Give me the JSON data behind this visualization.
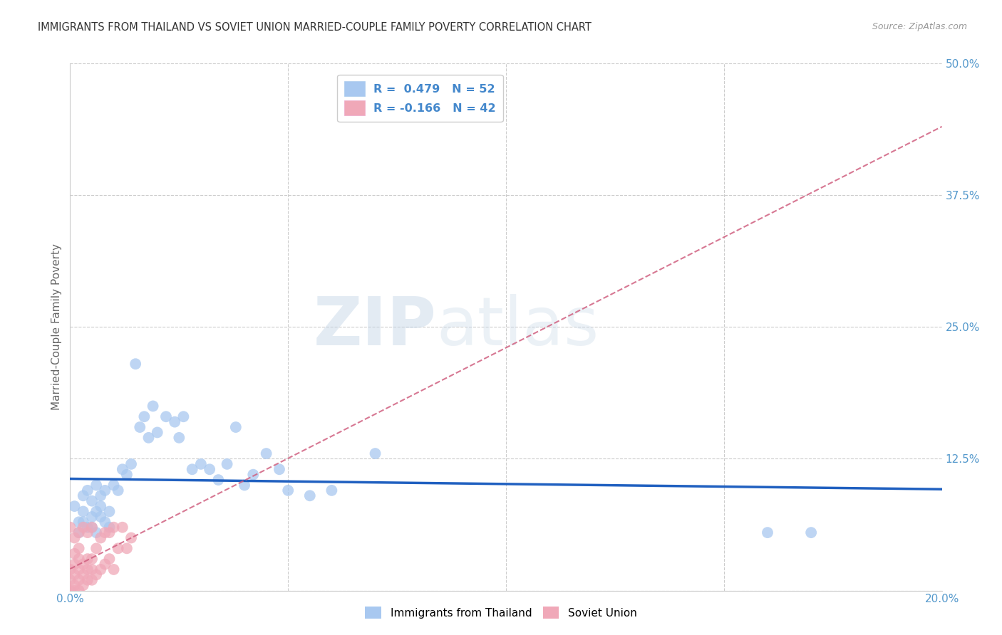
{
  "title": "IMMIGRANTS FROM THAILAND VS SOVIET UNION MARRIED-COUPLE FAMILY POVERTY CORRELATION CHART",
  "source": "Source: ZipAtlas.com",
  "ylabel": "Married-Couple Family Poverty",
  "xlim": [
    0.0,
    0.2
  ],
  "ylim": [
    0.0,
    0.5
  ],
  "xticks": [
    0.0,
    0.05,
    0.1,
    0.15,
    0.2
  ],
  "yticks": [
    0.0,
    0.125,
    0.25,
    0.375,
    0.5
  ],
  "xticklabels": [
    "0.0%",
    "",
    "",
    "",
    "20.0%"
  ],
  "yticklabels": [
    "",
    "12.5%",
    "25.0%",
    "37.5%",
    "50.0%"
  ],
  "thailand_R": 0.479,
  "thailand_N": 52,
  "soviet_R": -0.166,
  "soviet_N": 42,
  "thailand_color": "#a8c8f0",
  "soviet_color": "#f0a8b8",
  "thailand_line_color": "#2060c0",
  "soviet_line_color": "#d06080",
  "watermark_zip": "ZIP",
  "watermark_atlas": "atlas",
  "thailand_x": [
    0.001,
    0.002,
    0.002,
    0.003,
    0.003,
    0.003,
    0.004,
    0.004,
    0.005,
    0.005,
    0.005,
    0.006,
    0.006,
    0.006,
    0.007,
    0.007,
    0.007,
    0.008,
    0.008,
    0.009,
    0.009,
    0.01,
    0.011,
    0.012,
    0.013,
    0.014,
    0.015,
    0.016,
    0.017,
    0.018,
    0.019,
    0.02,
    0.022,
    0.024,
    0.025,
    0.026,
    0.028,
    0.03,
    0.032,
    0.034,
    0.036,
    0.038,
    0.04,
    0.042,
    0.045,
    0.048,
    0.05,
    0.055,
    0.06,
    0.07,
    0.16,
    0.17
  ],
  "thailand_y": [
    0.08,
    0.065,
    0.055,
    0.075,
    0.065,
    0.09,
    0.06,
    0.095,
    0.07,
    0.085,
    0.06,
    0.075,
    0.1,
    0.055,
    0.08,
    0.09,
    0.07,
    0.065,
    0.095,
    0.075,
    0.06,
    0.1,
    0.095,
    0.115,
    0.11,
    0.12,
    0.215,
    0.155,
    0.165,
    0.145,
    0.175,
    0.15,
    0.165,
    0.16,
    0.145,
    0.165,
    0.115,
    0.12,
    0.115,
    0.105,
    0.12,
    0.155,
    0.1,
    0.11,
    0.13,
    0.115,
    0.095,
    0.09,
    0.095,
    0.13,
    0.055,
    0.055
  ],
  "soviet_x": [
    0.0,
    0.0,
    0.0,
    0.0,
    0.001,
    0.001,
    0.001,
    0.001,
    0.001,
    0.001,
    0.002,
    0.002,
    0.002,
    0.002,
    0.002,
    0.002,
    0.003,
    0.003,
    0.003,
    0.003,
    0.004,
    0.004,
    0.004,
    0.004,
    0.005,
    0.005,
    0.005,
    0.005,
    0.006,
    0.006,
    0.007,
    0.007,
    0.008,
    0.008,
    0.009,
    0.009,
    0.01,
    0.01,
    0.011,
    0.012,
    0.013,
    0.014
  ],
  "soviet_y": [
    0.0,
    0.01,
    0.02,
    0.06,
    0.0,
    0.005,
    0.015,
    0.025,
    0.035,
    0.05,
    0.0,
    0.01,
    0.02,
    0.03,
    0.04,
    0.055,
    0.005,
    0.015,
    0.025,
    0.06,
    0.01,
    0.02,
    0.03,
    0.055,
    0.01,
    0.02,
    0.03,
    0.06,
    0.015,
    0.04,
    0.02,
    0.05,
    0.025,
    0.055,
    0.03,
    0.055,
    0.02,
    0.06,
    0.04,
    0.06,
    0.04,
    0.05
  ]
}
